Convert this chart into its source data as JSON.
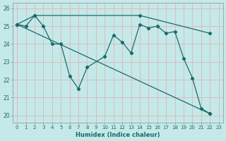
{
  "xlabel": "Humidex (Indice chaleur)",
  "bg_color": "#c5e8e8",
  "grid_color": "#dbb8b8",
  "line_color": "#1a6b6b",
  "xlim": [
    -0.5,
    23.5
  ],
  "ylim": [
    19.6,
    26.3
  ],
  "xticks": [
    0,
    1,
    2,
    3,
    4,
    5,
    6,
    7,
    8,
    9,
    10,
    11,
    12,
    13,
    14,
    15,
    16,
    17,
    18,
    19,
    20,
    21,
    22,
    23
  ],
  "yticks": [
    20,
    21,
    22,
    23,
    24,
    25,
    26
  ],
  "line1": {
    "x": [
      0,
      1,
      2,
      3,
      4,
      5,
      6,
      7,
      8,
      10,
      11,
      12,
      13,
      14,
      15,
      16,
      17,
      18,
      19,
      20,
      21,
      22
    ],
    "y": [
      25.1,
      25.0,
      25.6,
      25.0,
      24.0,
      24.0,
      22.2,
      21.5,
      22.7,
      23.3,
      24.5,
      24.1,
      23.5,
      25.1,
      24.9,
      25.0,
      24.6,
      24.7,
      23.2,
      22.1,
      20.4,
      20.1
    ]
  },
  "line2": {
    "x": [
      0,
      2,
      14,
      22
    ],
    "y": [
      25.1,
      25.6,
      25.6,
      24.6
    ]
  },
  "line3": {
    "x": [
      0,
      19,
      20,
      21,
      22
    ],
    "y": [
      25.1,
      23.2,
      22.1,
      20.4,
      20.1
    ]
  }
}
